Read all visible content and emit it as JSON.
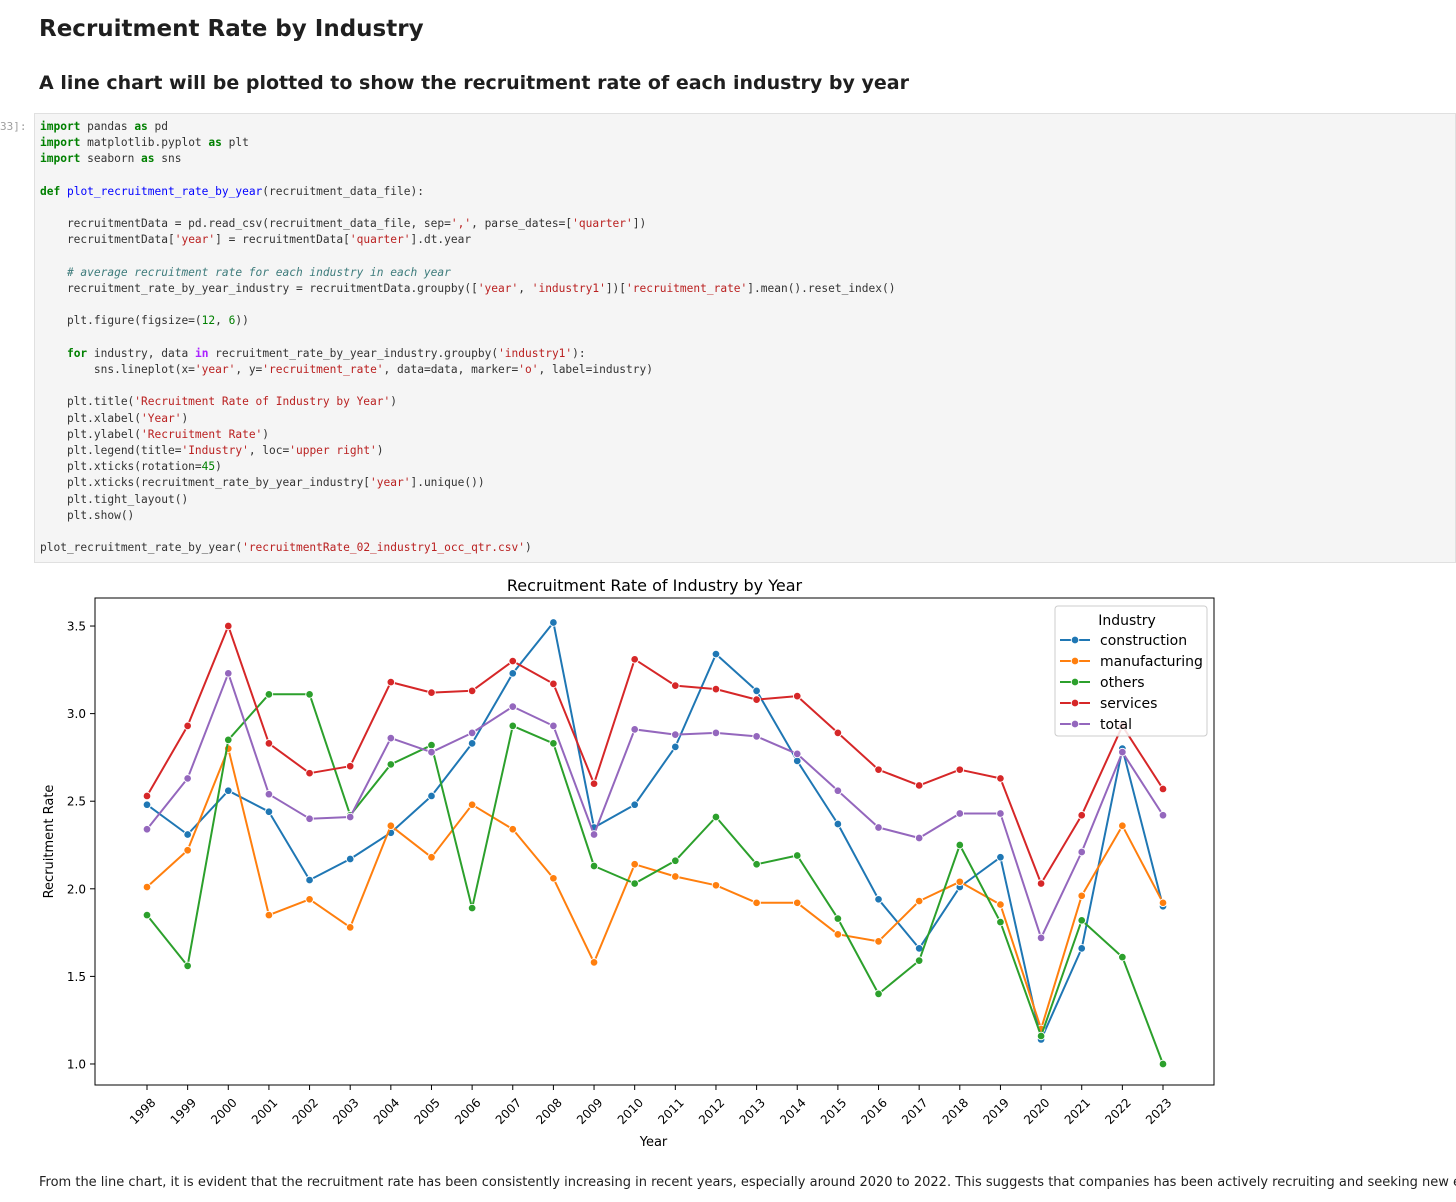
{
  "heading": "Recruitment Rate by Industry",
  "subheading": "A line chart will be plotted to show the recruitment rate of each industry by year",
  "cell_prompt": "33]:",
  "code_lines": [
    [
      [
        "kw",
        "import"
      ],
      [
        "t",
        " pandas "
      ],
      [
        "kw",
        "as"
      ],
      [
        "t",
        " pd"
      ]
    ],
    [
      [
        "kw",
        "import"
      ],
      [
        "t",
        " matplotlib.pyplot "
      ],
      [
        "kw",
        "as"
      ],
      [
        "t",
        " plt"
      ]
    ],
    [
      [
        "kw",
        "import"
      ],
      [
        "t",
        " seaborn "
      ],
      [
        "kw",
        "as"
      ],
      [
        "t",
        " sns"
      ]
    ],
    [],
    [
      [
        "kw",
        "def"
      ],
      [
        "t",
        " "
      ],
      [
        "fn",
        "plot_recruitment_rate_by_year"
      ],
      [
        "t",
        "(recruitment_data_file):"
      ]
    ],
    [],
    [
      [
        "t",
        "    recruitmentData = pd.read_csv(recruitment_data_file, sep="
      ],
      [
        "str",
        "','"
      ],
      [
        "t",
        ", parse_dates=["
      ],
      [
        "str",
        "'quarter'"
      ],
      [
        "t",
        "])"
      ]
    ],
    [
      [
        "t",
        "    recruitmentData["
      ],
      [
        "str",
        "'year'"
      ],
      [
        "t",
        "] = recruitmentData["
      ],
      [
        "str",
        "'quarter'"
      ],
      [
        "t",
        "].dt.year"
      ]
    ],
    [],
    [
      [
        "cm",
        "    # average recruitment rate for each industry in each year"
      ]
    ],
    [
      [
        "t",
        "    recruitment_rate_by_year_industry = recruitmentData.groupby(["
      ],
      [
        "str",
        "'year'"
      ],
      [
        "t",
        ", "
      ],
      [
        "str",
        "'industry1'"
      ],
      [
        "t",
        "])["
      ],
      [
        "str",
        "'recruitment_rate'"
      ],
      [
        "t",
        "].mean().reset_index()"
      ]
    ],
    [],
    [
      [
        "t",
        "    plt.figure(figsize=("
      ],
      [
        "num",
        "12"
      ],
      [
        "t",
        ", "
      ],
      [
        "num",
        "6"
      ],
      [
        "t",
        "))"
      ]
    ],
    [],
    [
      [
        "t",
        "    "
      ],
      [
        "kw",
        "for"
      ],
      [
        "t",
        " industry, data "
      ],
      [
        "kw2",
        "in"
      ],
      [
        "t",
        " recruitment_rate_by_year_industry.groupby("
      ],
      [
        "str",
        "'industry1'"
      ],
      [
        "t",
        "):"
      ]
    ],
    [
      [
        "t",
        "        sns.lineplot(x="
      ],
      [
        "str",
        "'year'"
      ],
      [
        "t",
        ", y="
      ],
      [
        "str",
        "'recruitment_rate'"
      ],
      [
        "t",
        ", data=data, marker="
      ],
      [
        "str",
        "'o'"
      ],
      [
        "t",
        ", label=industry)"
      ]
    ],
    [],
    [
      [
        "t",
        "    plt.title("
      ],
      [
        "str",
        "'Recruitment Rate of Industry by Year'"
      ],
      [
        "t",
        ")"
      ]
    ],
    [
      [
        "t",
        "    plt.xlabel("
      ],
      [
        "str",
        "'Year'"
      ],
      [
        "t",
        ")"
      ]
    ],
    [
      [
        "t",
        "    plt.ylabel("
      ],
      [
        "str",
        "'Recruitment Rate'"
      ],
      [
        "t",
        ")"
      ]
    ],
    [
      [
        "t",
        "    plt.legend(title="
      ],
      [
        "str",
        "'Industry'"
      ],
      [
        "t",
        ", loc="
      ],
      [
        "str",
        "'upper right'"
      ],
      [
        "t",
        ")"
      ]
    ],
    [
      [
        "t",
        "    plt.xticks(rotation="
      ],
      [
        "num",
        "45"
      ],
      [
        "t",
        ")"
      ]
    ],
    [
      [
        "t",
        "    plt.xticks(recruitment_rate_by_year_industry["
      ],
      [
        "str",
        "'year'"
      ],
      [
        "t",
        "].unique())"
      ]
    ],
    [
      [
        "t",
        "    plt.tight_layout()"
      ]
    ],
    [
      [
        "t",
        "    plt.show()"
      ]
    ],
    [],
    [
      [
        "t",
        "plot_recruitment_rate_by_year("
      ],
      [
        "str",
        "'recruitmentRate_02_industry1_occ_qtr.csv'"
      ],
      [
        "t",
        ")"
      ]
    ]
  ],
  "chart_data": {
    "type": "line",
    "title": "Recruitment Rate of Industry by Year",
    "xlabel": "Year",
    "ylabel": "Recruitment Rate",
    "x": [
      1998,
      1999,
      2000,
      2001,
      2002,
      2003,
      2004,
      2005,
      2006,
      2007,
      2008,
      2009,
      2010,
      2011,
      2012,
      2013,
      2014,
      2015,
      2016,
      2017,
      2018,
      2019,
      2020,
      2021,
      2022,
      2023
    ],
    "yticks": [
      1.0,
      1.5,
      2.0,
      2.5,
      3.0,
      3.5
    ],
    "ylim": [
      0.88,
      3.66
    ],
    "legend_title": "Industry",
    "legend_position": "upper right",
    "grid": false,
    "series": [
      {
        "name": "construction",
        "color": "#1f77b4",
        "values": [
          2.48,
          2.31,
          2.56,
          2.44,
          2.05,
          2.17,
          2.32,
          2.53,
          2.83,
          3.23,
          3.52,
          2.35,
          2.48,
          2.81,
          3.34,
          3.13,
          2.73,
          2.37,
          1.94,
          1.66,
          2.01,
          2.18,
          1.14,
          1.66,
          2.8,
          1.9
        ]
      },
      {
        "name": "manufacturing",
        "color": "#ff7f0e",
        "values": [
          2.01,
          2.22,
          2.8,
          1.85,
          1.94,
          1.78,
          2.36,
          2.18,
          2.48,
          2.34,
          2.06,
          1.58,
          2.14,
          2.07,
          2.02,
          1.92,
          1.92,
          1.74,
          1.7,
          1.93,
          2.04,
          1.91,
          1.2,
          1.96,
          2.36,
          1.92
        ]
      },
      {
        "name": "others",
        "color": "#2ca02c",
        "values": [
          1.85,
          1.56,
          2.85,
          3.11,
          3.11,
          2.42,
          2.71,
          2.82,
          1.89,
          2.93,
          2.83,
          2.13,
          2.03,
          2.16,
          2.41,
          2.14,
          2.19,
          1.83,
          1.4,
          1.59,
          2.25,
          1.81,
          1.16,
          1.82,
          1.61,
          1.0
        ]
      },
      {
        "name": "services",
        "color": "#d62728",
        "values": [
          2.53,
          2.93,
          3.5,
          2.83,
          2.66,
          2.7,
          3.18,
          3.12,
          3.13,
          3.3,
          3.17,
          2.6,
          3.31,
          3.16,
          3.14,
          3.08,
          3.1,
          2.89,
          2.68,
          2.59,
          2.68,
          2.63,
          2.03,
          2.42,
          2.93,
          2.57
        ]
      },
      {
        "name": "total",
        "color": "#9467bd",
        "values": [
          2.34,
          2.63,
          3.23,
          2.54,
          2.4,
          2.41,
          2.86,
          2.78,
          2.89,
          3.04,
          2.93,
          2.31,
          2.91,
          2.88,
          2.89,
          2.87,
          2.77,
          2.56,
          2.35,
          2.29,
          2.43,
          2.43,
          1.72,
          2.21,
          2.78,
          2.42
        ]
      }
    ]
  },
  "footer_text": "From the line chart, it is evident that the recruitment rate has been consistently increasing in recent years, especially around 2020 to 2022. This suggests that companies has been actively recruiting and seeking new employees."
}
